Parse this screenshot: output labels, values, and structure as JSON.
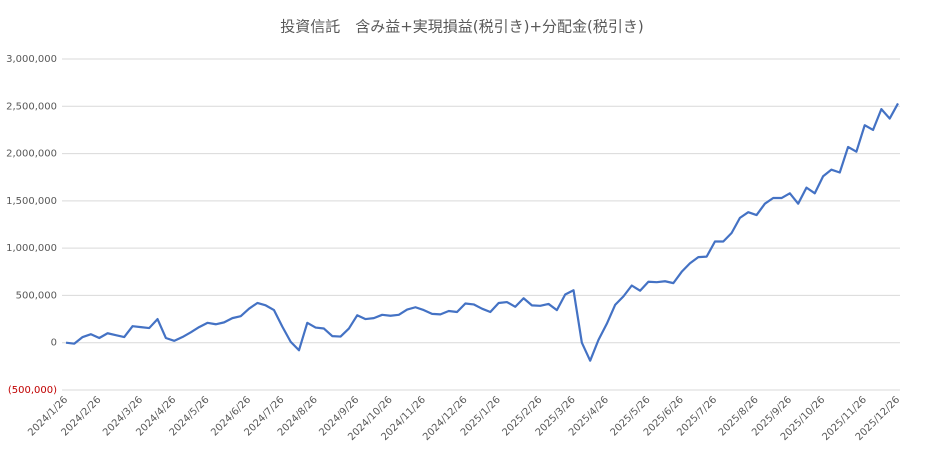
{
  "chart_data": {
    "type": "line",
    "title": "投資信託　含み益+実現損益(税引き)+分配金(税引き)",
    "categories": [
      "2024/1/26",
      null,
      null,
      null,
      "2024/2/26",
      null,
      null,
      null,
      null,
      "2024/3/26",
      null,
      null,
      null,
      "2024/4/26",
      null,
      null,
      null,
      "2024/5/26",
      null,
      null,
      null,
      null,
      "2024/6/26",
      null,
      null,
      null,
      "2024/7/26",
      null,
      null,
      null,
      "2024/8/26",
      null,
      null,
      null,
      null,
      "2024/9/26",
      null,
      null,
      null,
      "2024/10/26",
      null,
      null,
      null,
      "2024/11/26",
      null,
      null,
      null,
      null,
      "2024/12/26",
      null,
      null,
      null,
      "2025/1/26",
      null,
      null,
      null,
      null,
      "2025/2/26",
      null,
      null,
      null,
      "2025/3/26",
      null,
      null,
      null,
      "2025/4/26",
      null,
      null,
      null,
      null,
      "2025/5/26",
      null,
      null,
      null,
      "2025/6/26",
      null,
      null,
      null,
      "2025/7/26",
      null,
      null,
      null,
      null,
      "2025/8/26",
      null,
      null,
      null,
      "2025/9/26",
      null,
      null,
      null,
      "2025/10/26",
      null,
      null,
      null,
      null,
      "2025/11/26",
      null,
      null,
      null,
      "2025/12/26"
    ],
    "values": [
      0,
      -10000,
      60000,
      90000,
      50000,
      100000,
      80000,
      60000,
      175000,
      165000,
      155000,
      250000,
      50000,
      20000,
      60000,
      110000,
      165000,
      210000,
      195000,
      215000,
      260000,
      280000,
      360000,
      420000,
      395000,
      345000,
      170000,
      10000,
      -80000,
      210000,
      160000,
      150000,
      70000,
      65000,
      150000,
      290000,
      250000,
      260000,
      295000,
      285000,
      295000,
      350000,
      375000,
      345000,
      305000,
      300000,
      335000,
      325000,
      415000,
      405000,
      360000,
      325000,
      420000,
      430000,
      380000,
      470000,
      395000,
      390000,
      410000,
      345000,
      510000,
      555000,
      0,
      -190000,
      30000,
      200000,
      400000,
      490000,
      605000,
      550000,
      645000,
      640000,
      650000,
      630000,
      750000,
      840000,
      905000,
      910000,
      1070000,
      1070000,
      1160000,
      1320000,
      1380000,
      1350000,
      1470000,
      1530000,
      1530000,
      1580000,
      1470000,
      1640000,
      1580000,
      1760000,
      1830000,
      1800000,
      2070000,
      2020000,
      2300000,
      2250000,
      2470000,
      2370000,
      2530000
    ],
    "color": "#4472c4",
    "ylim": [
      -500000,
      3000000
    ],
    "yticks": [
      {
        "value": -500000,
        "label": "(500,000)"
      },
      0,
      {
        "value": 500000,
        "label": "500,000"
      },
      {
        "value": 1000000,
        "label": "1,000,000"
      },
      {
        "value": 1500000,
        "label": "1,500,000"
      },
      {
        "value": 2000000,
        "label": "2,000,000"
      },
      {
        "value": 2500000,
        "label": "2,500,000"
      },
      {
        "value": 3000000,
        "label": "3,000,000"
      }
    ],
    "negative_tick_color": "#c00000",
    "grid": true
  }
}
